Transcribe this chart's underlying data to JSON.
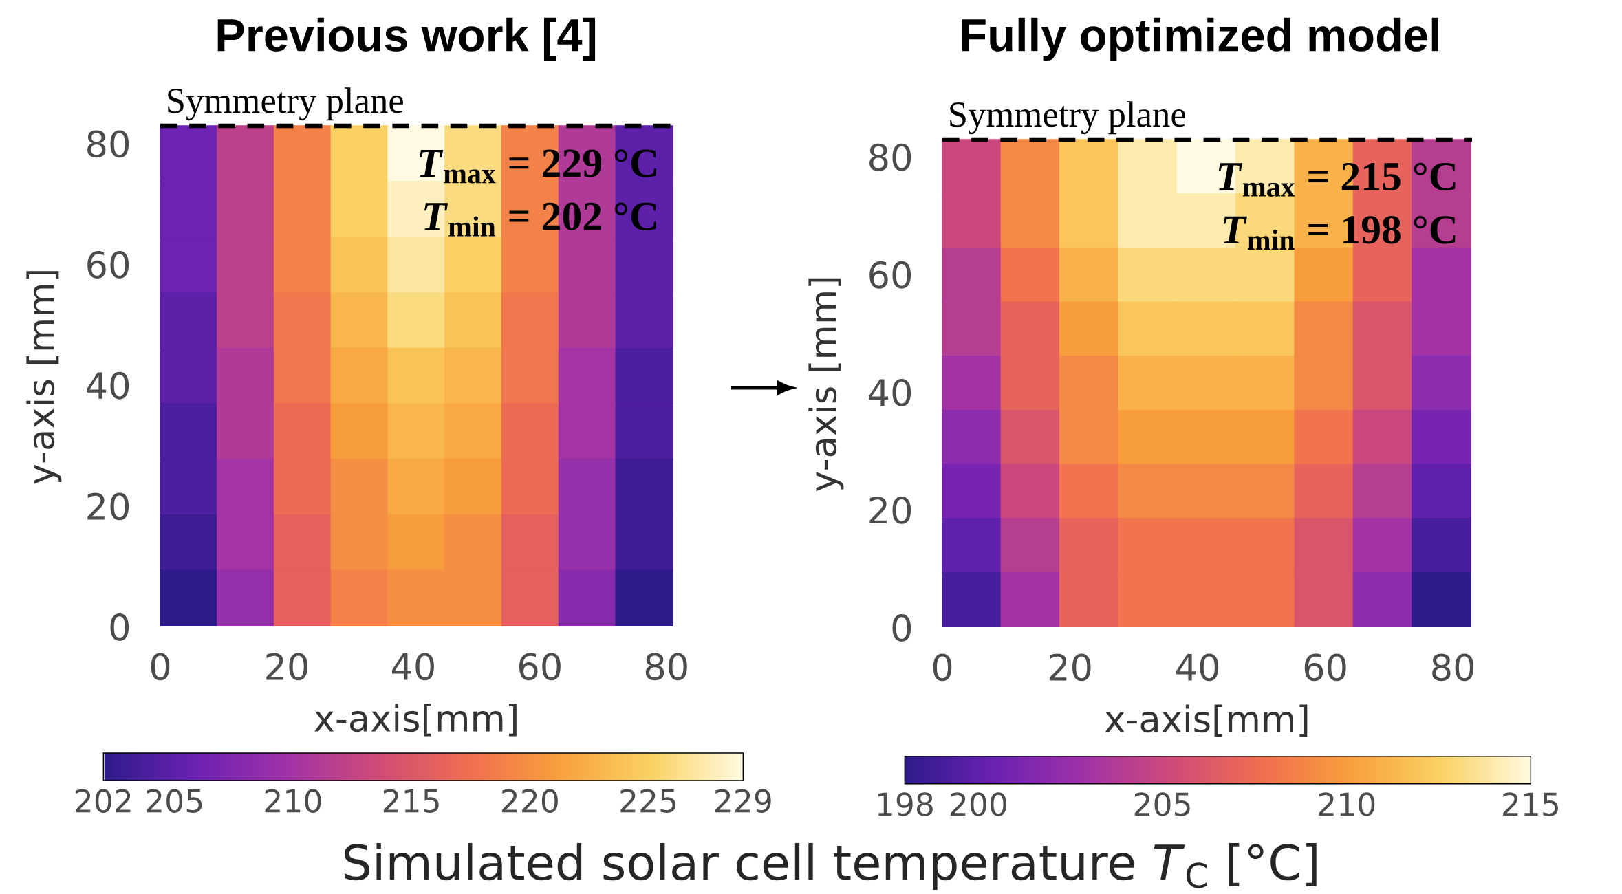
{
  "chart_data": [
    {
      "type": "heatmap",
      "title": "Previous work [4]",
      "xlabel": "x-axis[mm]",
      "ylabel": "y-axis [mm]",
      "clabel": "Simulated solar cell temperature *T*$_{C}$ [°C]",
      "x": [
        4.5,
        13.5,
        22.5,
        31.5,
        40.5,
        49.5,
        58.5,
        67.5,
        76.5
      ],
      "y": [
        78.4,
        69.2,
        60,
        50.8,
        41.6,
        32.4,
        23.2,
        14,
        4.8
      ],
      "cells": [
        [
          206,
          212,
          219,
          225,
          229,
          226,
          219,
          211,
          205
        ],
        [
          206,
          212,
          219,
          225,
          228,
          226,
          219,
          211,
          205
        ],
        [
          206,
          212,
          219,
          224,
          227,
          225,
          219,
          211,
          205
        ],
        [
          205,
          212,
          218,
          223,
          226,
          224,
          218,
          211,
          205
        ],
        [
          205,
          211,
          218,
          222,
          224,
          223,
          218,
          210,
          204
        ],
        [
          204,
          211,
          217,
          221,
          223,
          222,
          217,
          210,
          204
        ],
        [
          204,
          210,
          217,
          220,
          222,
          221,
          217,
          209,
          203
        ],
        [
          203,
          210,
          216,
          220,
          221,
          220,
          216,
          209,
          203
        ],
        [
          202,
          209,
          216,
          219,
          220,
          220,
          216,
          208,
          202
        ]
      ],
      "clim": [
        202,
        229
      ],
      "cticks": [
        202,
        205,
        210,
        215,
        220,
        225,
        229
      ],
      "xlim": [
        0,
        81
      ],
      "ylim": [
        0,
        83
      ],
      "xticks": [
        0,
        20,
        40,
        60,
        80
      ],
      "yticks": [
        0,
        20,
        40,
        60,
        80
      ],
      "ref_lines": [
        {
          "axis": "y",
          "value": 83,
          "label": "Symmetry plane",
          "line_style": "dashed",
          "color": "#000000"
        }
      ],
      "annotations": [
        "*T*$_{max}$ = 229 °C",
        "*T*$_{min}$ = 202 °C"
      ]
    },
    {
      "type": "heatmap",
      "title": "Fully optimized model",
      "xlabel": "x-axis[mm]",
      "ylabel": "y-axis [mm]",
      "x": [
        4.6,
        13.8,
        23,
        32.2,
        41.4,
        50.6,
        59.8,
        69,
        78.2
      ],
      "y": [
        78.4,
        69.2,
        60,
        50.8,
        41.6,
        32.4,
        23.2,
        14,
        4.8
      ],
      "cells": [
        [
          205,
          209,
          212,
          214,
          215,
          214,
          211,
          207,
          204
        ],
        [
          205,
          209,
          212,
          214,
          214,
          213,
          211,
          207,
          204
        ],
        [
          204,
          208,
          211,
          213,
          213,
          213,
          210,
          207,
          203
        ],
        [
          204,
          207,
          210,
          212,
          212,
          212,
          209,
          206,
          203
        ],
        [
          203,
          207,
          209,
          211,
          211,
          211,
          209,
          206,
          202
        ],
        [
          202,
          206,
          209,
          210,
          210,
          210,
          208,
          205,
          201
        ],
        [
          201,
          205,
          208,
          209,
          209,
          209,
          207,
          204,
          200
        ],
        [
          200,
          204,
          207,
          208,
          208,
          208,
          206,
          203,
          199
        ],
        [
          199,
          203,
          207,
          208,
          208,
          208,
          206,
          202,
          198
        ]
      ],
      "clim": [
        198,
        215
      ],
      "cticks": [
        198,
        200,
        205,
        210,
        215
      ],
      "xlim": [
        0,
        83
      ],
      "ylim": [
        0,
        83
      ],
      "xticks": [
        0,
        20,
        40,
        60,
        80
      ],
      "yticks": [
        0,
        20,
        40,
        60,
        80
      ],
      "ref_lines": [
        {
          "axis": "y",
          "value": 83,
          "label": "Symmetry plane",
          "line_style": "dashed",
          "color": "#000000"
        }
      ],
      "annotations": [
        "*T*$_{max}$ = 215 °C",
        "*T*$_{min}$ = 198 °C"
      ]
    }
  ]
}
